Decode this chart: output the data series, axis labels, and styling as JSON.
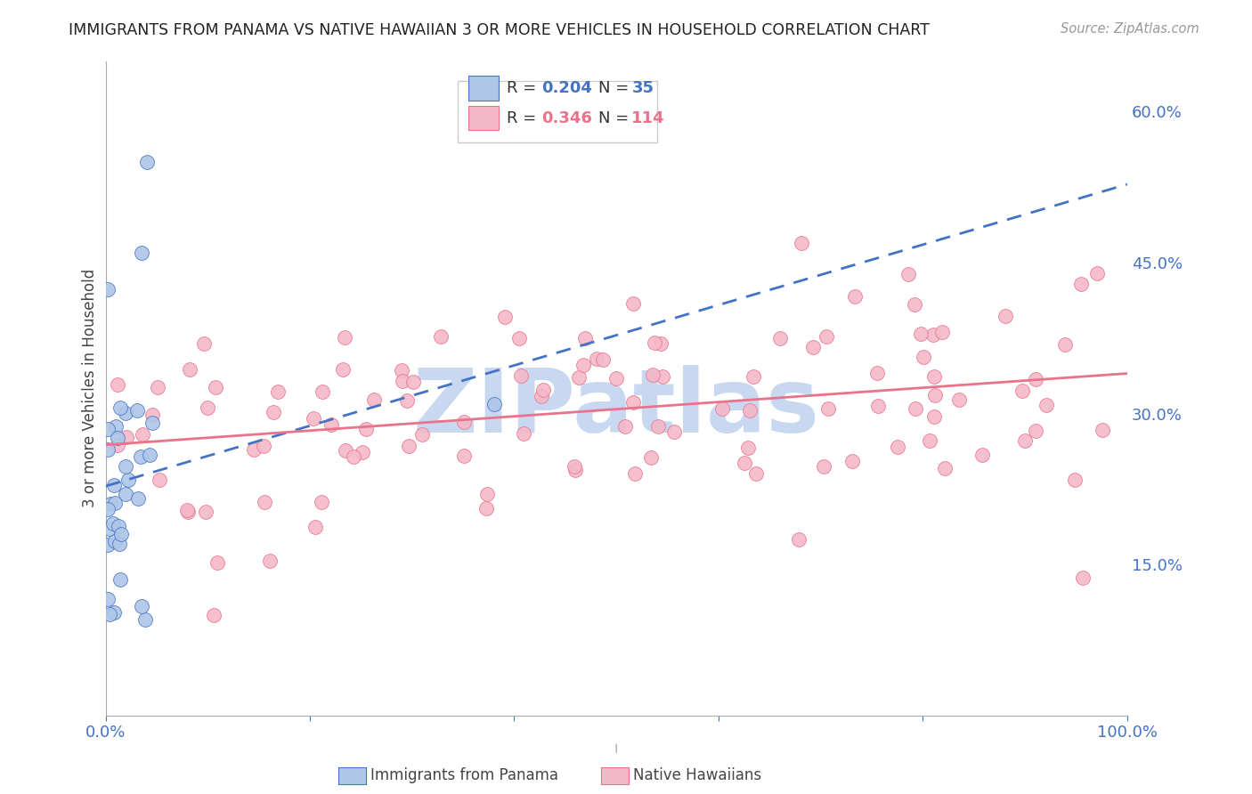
{
  "title": "IMMIGRANTS FROM PANAMA VS NATIVE HAWAIIAN 3 OR MORE VEHICLES IN HOUSEHOLD CORRELATION CHART",
  "source": "Source: ZipAtlas.com",
  "ylabel": "3 or more Vehicles in Household",
  "watermark": "ZIPatlas",
  "blue_R": 0.204,
  "blue_N": 35,
  "pink_R": 0.346,
  "pink_N": 114,
  "blue_label": "Immigrants from Panama",
  "pink_label": "Native Hawaiians",
  "xlim": [
    0.0,
    1.0
  ],
  "ylim": [
    0.0,
    0.65
  ],
  "right_yticks": [
    0.15,
    0.3,
    0.45,
    0.6
  ],
  "right_yticklabels": [
    "15.0%",
    "30.0%",
    "45.0%",
    "60.0%"
  ],
  "xtick_positions": [
    0.0,
    0.2,
    0.4,
    0.6,
    0.8,
    1.0
  ],
  "xticklabels": [
    "0.0%",
    "",
    "",
    "",
    "",
    "100.0%"
  ],
  "blue_fill_color": "#aec6e8",
  "blue_edge_color": "#4472c4",
  "pink_fill_color": "#f4b8c8",
  "pink_edge_color": "#e8738a",
  "grid_color": "#cccccc",
  "title_color": "#222222",
  "tick_label_color": "#4472c4",
  "watermark_color": "#c8d8f0",
  "background_color": "#ffffff",
  "blue_seed": 77,
  "pink_seed": 99
}
